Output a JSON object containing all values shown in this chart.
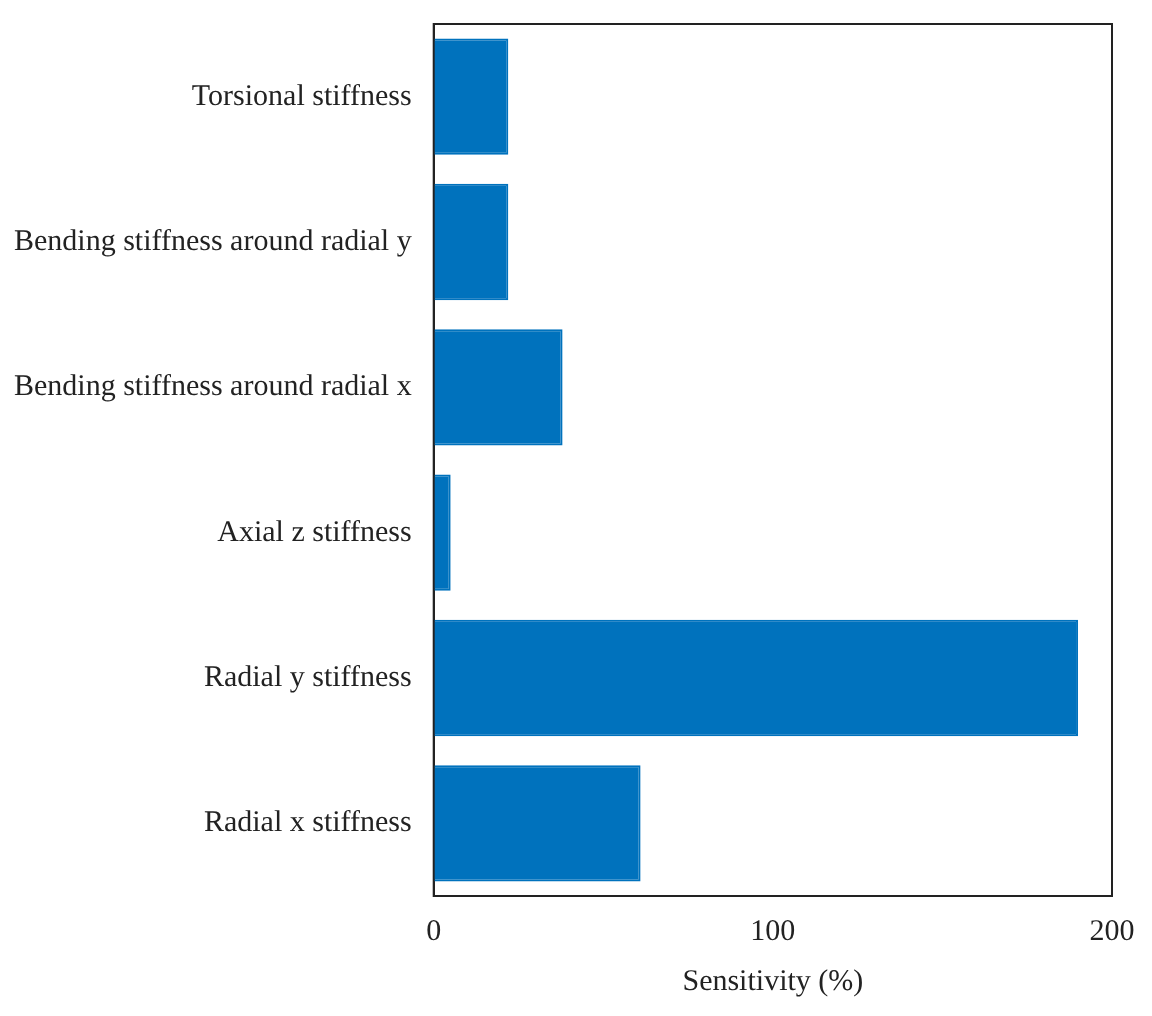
{
  "chart_data": {
    "type": "bar",
    "orientation": "horizontal",
    "xlabel": "Sensitivity (%)",
    "categories": [
      "Torsional stiffness",
      "Bending stiffness around radial y",
      "Bending stiffness around radial x",
      "Axial z stiffness",
      "Radial y stiffness",
      "Radial x stiffness"
    ],
    "values": [
      22,
      22,
      38,
      5,
      190,
      61
    ],
    "color": "#0072bd",
    "xlim": [
      0,
      200
    ],
    "xticks": [
      0,
      100,
      200
    ],
    "grid": false
  }
}
